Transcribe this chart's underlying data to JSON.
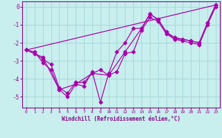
{
  "bg_color": "#c8eeee",
  "grid_color": "#a8d8d8",
  "line_color": "#aa00aa",
  "marker": "D",
  "markersize": 2.5,
  "linewidth": 0.9,
  "xlabel": "Windchill (Refroidissement éolien,°C)",
  "xlabel_color": "#880088",
  "tick_color": "#880088",
  "xlim": [
    -0.5,
    23.5
  ],
  "ylim": [
    -5.6,
    0.3
  ],
  "yticks": [
    0,
    -1,
    -2,
    -3,
    -4,
    -5
  ],
  "xticks": [
    0,
    1,
    2,
    3,
    4,
    5,
    6,
    7,
    8,
    9,
    10,
    11,
    12,
    13,
    14,
    15,
    16,
    17,
    18,
    19,
    20,
    21,
    22,
    23
  ],
  "series": [
    {
      "x": [
        0,
        1,
        2,
        3,
        4,
        5,
        6,
        7,
        8,
        9,
        10,
        11,
        12,
        13,
        14,
        15,
        16,
        17,
        18,
        19,
        20,
        21,
        22,
        23
      ],
      "y": [
        -2.4,
        -2.5,
        -3.1,
        -3.5,
        -4.6,
        -5.0,
        -4.3,
        -4.4,
        -3.6,
        -5.3,
        -3.7,
        -2.5,
        -2.0,
        -1.2,
        -1.2,
        -0.4,
        -0.7,
        -1.4,
        -1.8,
        -1.8,
        -1.9,
        -2.0,
        -0.9,
        0.1
      ],
      "has_marker": true
    },
    {
      "x": [
        0,
        1,
        2,
        3,
        4,
        5,
        6,
        7,
        8,
        9,
        10,
        11,
        12,
        13,
        14,
        15,
        16,
        17,
        18,
        19,
        20,
        21,
        22,
        23
      ],
      "y": [
        -2.4,
        -2.6,
        -2.9,
        -3.2,
        -4.5,
        -4.8,
        -4.2,
        -4.2,
        -3.7,
        -3.5,
        -3.8,
        -3.6,
        -2.6,
        -2.5,
        -1.3,
        -0.6,
        -0.8,
        -1.5,
        -1.8,
        -1.9,
        -2.0,
        -2.1,
        -1.0,
        0.0
      ],
      "has_marker": true
    },
    {
      "x": [
        0,
        2,
        4,
        6,
        8,
        10,
        12,
        14,
        15,
        16,
        17,
        18,
        20,
        21,
        22,
        23
      ],
      "y": [
        -2.4,
        -2.8,
        -4.6,
        -4.3,
        -3.7,
        -3.8,
        -2.5,
        -1.2,
        -0.4,
        -0.7,
        -1.4,
        -1.7,
        -1.9,
        -2.0,
        -0.9,
        0.1
      ],
      "has_marker": true
    },
    {
      "x": [
        0,
        23
      ],
      "y": [
        -2.4,
        0.1
      ],
      "has_marker": false
    }
  ]
}
